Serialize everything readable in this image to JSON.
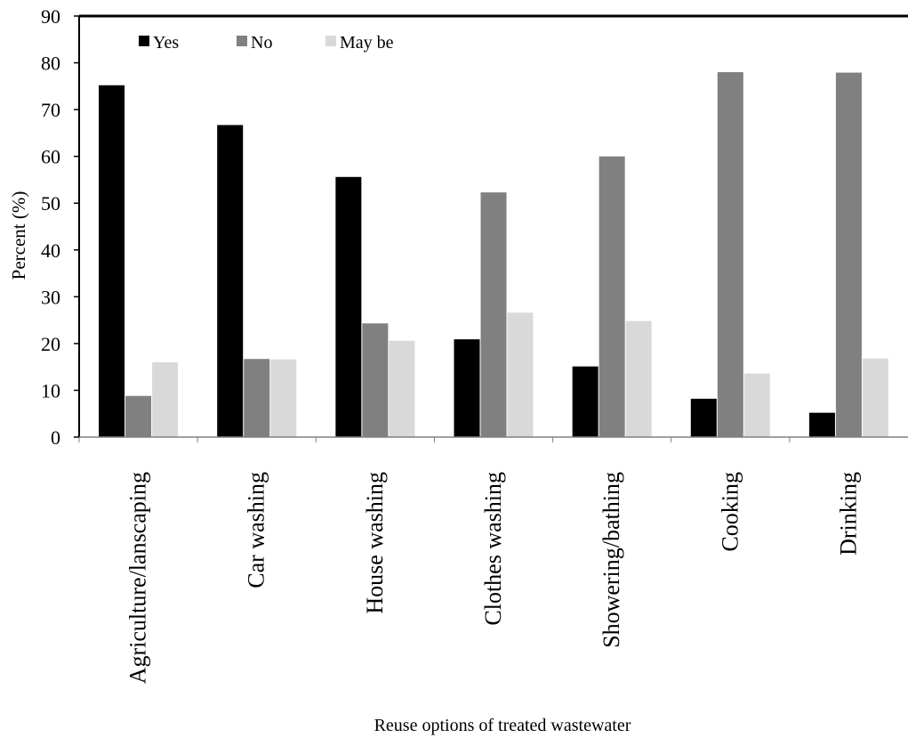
{
  "chart_data": {
    "type": "bar",
    "title": "",
    "xlabel": "Reuse options of treated wastewater",
    "ylabel": "Percent (%)",
    "ylim": [
      0,
      90
    ],
    "yticks": [
      0,
      10,
      20,
      30,
      40,
      50,
      60,
      70,
      80,
      90
    ],
    "grid": false,
    "legend_position": "top-left",
    "categories": [
      "Agriculture/lanscaping",
      "Car washing",
      "House washing",
      "Clothes washing",
      "Showering/bathing",
      "Cooking",
      "Drinking"
    ],
    "series": [
      {
        "name": "Yes",
        "color": "#000000",
        "values": [
          75.2,
          66.7,
          55.6,
          20.9,
          15.1,
          8.2,
          5.2
        ]
      },
      {
        "name": "No",
        "color": "#808080",
        "values": [
          8.8,
          16.7,
          24.3,
          52.3,
          60.0,
          78.0,
          77.9
        ]
      },
      {
        "name": "May be",
        "color": "#d9d9d9",
        "values": [
          16.0,
          16.6,
          20.6,
          26.6,
          24.8,
          13.6,
          16.8
        ]
      }
    ]
  }
}
